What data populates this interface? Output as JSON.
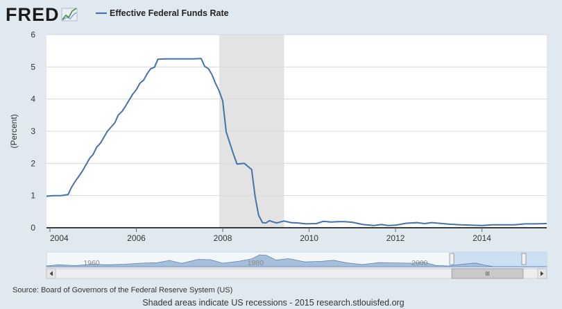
{
  "header": {
    "logo_text": "FRED",
    "legend_label": "Effective Federal Funds Rate",
    "series_color": "#4572a7"
  },
  "chart_data": {
    "type": "line",
    "title": "",
    "xlabel": "",
    "ylabel": "(Percent)",
    "xlim": [
      2003.92,
      2015.5
    ],
    "ylim": [
      0,
      6
    ],
    "y_ticks": [
      "0",
      "1",
      "2",
      "3",
      "4",
      "5",
      "6"
    ],
    "x_ticks": [
      "2004",
      "2006",
      "2008",
      "2010",
      "2012",
      "2014"
    ],
    "x_tick_values": [
      2004,
      2006,
      2008,
      2010,
      2012,
      2014
    ],
    "recession_shading": [
      {
        "start": 2007.92,
        "end": 2009.42
      }
    ],
    "grid": true,
    "legend_position": "top-left",
    "series": [
      {
        "name": "Effective Federal Funds Rate",
        "color": "#4572a7",
        "x": [
          2003.92,
          2004.08,
          2004.25,
          2004.42,
          2004.5,
          2004.58,
          2004.75,
          2004.92,
          2005.0,
          2005.08,
          2005.17,
          2005.33,
          2005.5,
          2005.58,
          2005.67,
          2005.75,
          2005.92,
          2006.0,
          2006.08,
          2006.17,
          2006.25,
          2006.33,
          2006.42,
          2006.5,
          2006.67,
          2006.83,
          2007.0,
          2007.17,
          2007.33,
          2007.5,
          2007.58,
          2007.67,
          2007.75,
          2007.83,
          2007.92,
          2008.0,
          2008.08,
          2008.17,
          2008.25,
          2008.33,
          2008.5,
          2008.67,
          2008.75,
          2008.83,
          2008.92,
          2009.0,
          2009.08,
          2009.17,
          2009.25,
          2009.33,
          2009.42,
          2009.58,
          2009.75,
          2009.92,
          2010.17,
          2010.33,
          2010.5,
          2010.67,
          2010.83,
          2011.0,
          2011.25,
          2011.5,
          2011.67,
          2011.83,
          2012.0,
          2012.25,
          2012.5,
          2012.67,
          2012.83,
          2013.0,
          2013.25,
          2013.5,
          2013.75,
          2014.0,
          2014.25,
          2014.5,
          2014.75,
          2015.0,
          2015.25,
          2015.5
        ],
        "y": [
          0.98,
          1.0,
          1.0,
          1.03,
          1.26,
          1.43,
          1.76,
          2.16,
          2.28,
          2.5,
          2.63,
          3.0,
          3.26,
          3.5,
          3.62,
          3.78,
          4.16,
          4.29,
          4.49,
          4.59,
          4.79,
          4.94,
          4.99,
          5.24,
          5.25,
          5.25,
          5.25,
          5.25,
          5.25,
          5.26,
          5.02,
          4.94,
          4.76,
          4.5,
          4.24,
          3.94,
          2.98,
          2.61,
          2.28,
          1.98,
          2.0,
          1.81,
          0.97,
          0.39,
          0.16,
          0.15,
          0.22,
          0.18,
          0.15,
          0.18,
          0.21,
          0.16,
          0.15,
          0.12,
          0.13,
          0.2,
          0.18,
          0.19,
          0.19,
          0.17,
          0.1,
          0.07,
          0.1,
          0.07,
          0.08,
          0.14,
          0.16,
          0.13,
          0.16,
          0.14,
          0.11,
          0.09,
          0.08,
          0.07,
          0.09,
          0.09,
          0.09,
          0.12,
          0.12,
          0.13
        ]
      }
    ]
  },
  "navigator": {
    "labels": [
      "1960",
      "1980",
      "2000"
    ],
    "label_values": [
      1960,
      1980,
      2000
    ],
    "range": [
      1954.5,
      2015.5
    ],
    "selected_range": [
      2003.92,
      2015.5
    ],
    "x": [
      1954.5,
      1956,
      1958,
      1960,
      1962,
      1964,
      1966,
      1968,
      1969.5,
      1971,
      1973,
      1974.5,
      1976,
      1978,
      1979.5,
      1980.5,
      1981.3,
      1982.5,
      1984,
      1986,
      1988,
      1989.5,
      1991,
      1993,
      1995,
      1997,
      1999,
      2000.5,
      2002,
      2003.5,
      2005,
      2006.8,
      2008,
      2009,
      2010,
      2012,
      2014,
      2015.5
    ],
    "y": [
      1.0,
      2.7,
      1.5,
      3.5,
      2.7,
      3.5,
      5.0,
      5.7,
      9.0,
      4.7,
      10.5,
      10.0,
      5.0,
      7.9,
      11.2,
      17.0,
      16.4,
      9.3,
      11.6,
      6.8,
      7.6,
      9.2,
      5.7,
      3.0,
      5.8,
      5.4,
      5.0,
      6.4,
      1.7,
      1.0,
      3.2,
      5.25,
      2.0,
      0.15,
      0.15,
      0.1,
      0.09,
      0.13
    ],
    "ymax": 20
  },
  "footer": {
    "source": "Source: Board of Governors of the Federal Reserve System (US)",
    "note": "Shaded areas indicate US recessions - 2015 research.stlouisfed.org"
  }
}
